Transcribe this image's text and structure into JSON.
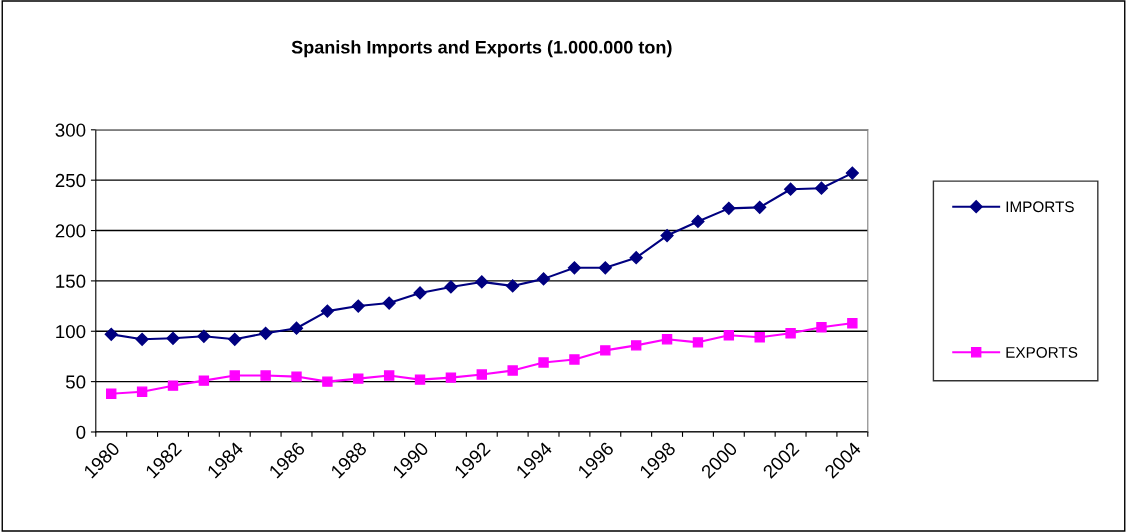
{
  "chart_data": {
    "type": "line",
    "title": "Spanish Imports and Exports (1.000.000 ton)",
    "categories": [
      "1980",
      null,
      "1982",
      null,
      "1984",
      null,
      "1986",
      null,
      "1988",
      null,
      "1990",
      null,
      "1992",
      null,
      "1994",
      null,
      "1996",
      null,
      "1998",
      null,
      "2000",
      null,
      "2002",
      null,
      "2004"
    ],
    "series": [
      {
        "name": "IMPORTS",
        "color": "#000080",
        "marker": "diamond",
        "values": [
          97,
          92,
          93,
          95,
          92,
          98,
          103,
          120,
          125,
          128,
          138,
          144,
          149,
          145,
          152,
          163,
          163,
          173,
          195,
          209,
          222,
          223,
          241,
          242,
          257
        ]
      },
      {
        "name": "EXPORTS",
        "color": "#ff00ff",
        "marker": "square",
        "values": [
          38,
          40,
          46,
          51,
          56,
          56,
          55,
          50,
          53,
          56,
          52,
          54,
          57,
          61,
          69,
          72,
          81,
          86,
          92,
          89,
          96,
          94,
          98,
          104,
          108
        ]
      }
    ],
    "ylim": [
      0,
      300
    ],
    "yticks": [
      0,
      50,
      100,
      150,
      200,
      250,
      300
    ],
    "grid": "y",
    "legend": "right",
    "line_style": "solid"
  }
}
